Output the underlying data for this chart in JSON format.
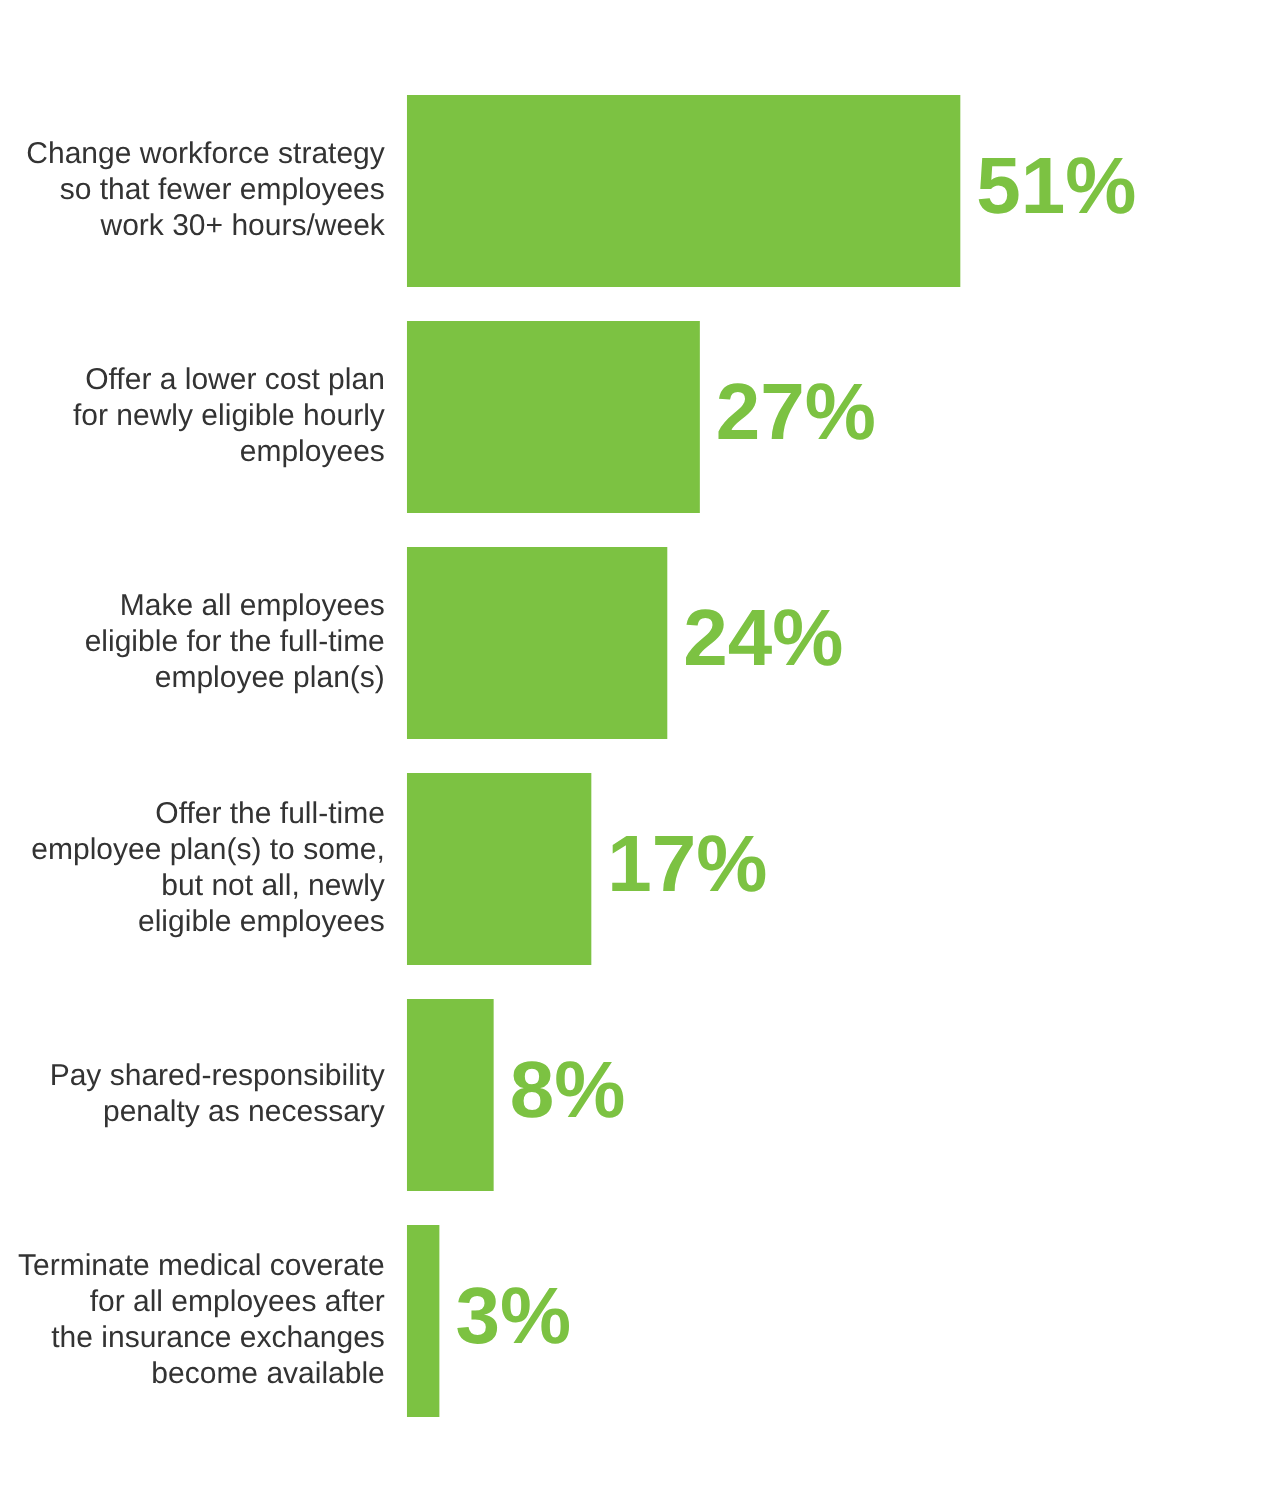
{
  "chart_data": {
    "type": "bar",
    "orientation": "horizontal",
    "categories": [
      "Change workforce strategy so that fewer employees work 30+ hours/week",
      "Offer a lower cost plan for newly eligible hourly employees",
      "Make all employees eligible for the full-time employee plan(s)",
      "Offer the full-time employee plan(s) to some, but not all, newly eligible employees",
      "Pay shared-responsibility penalty as necessary",
      "Terminate medical coverate for all employees after the insurance exchanges become available"
    ],
    "values": [
      51,
      27,
      24,
      17,
      8,
      3
    ],
    "color": "#7cc242",
    "value_labels": [
      "51%",
      "27%",
      "24%",
      "17%",
      "8%",
      "3%"
    ],
    "tick_labels": "y"
  }
}
